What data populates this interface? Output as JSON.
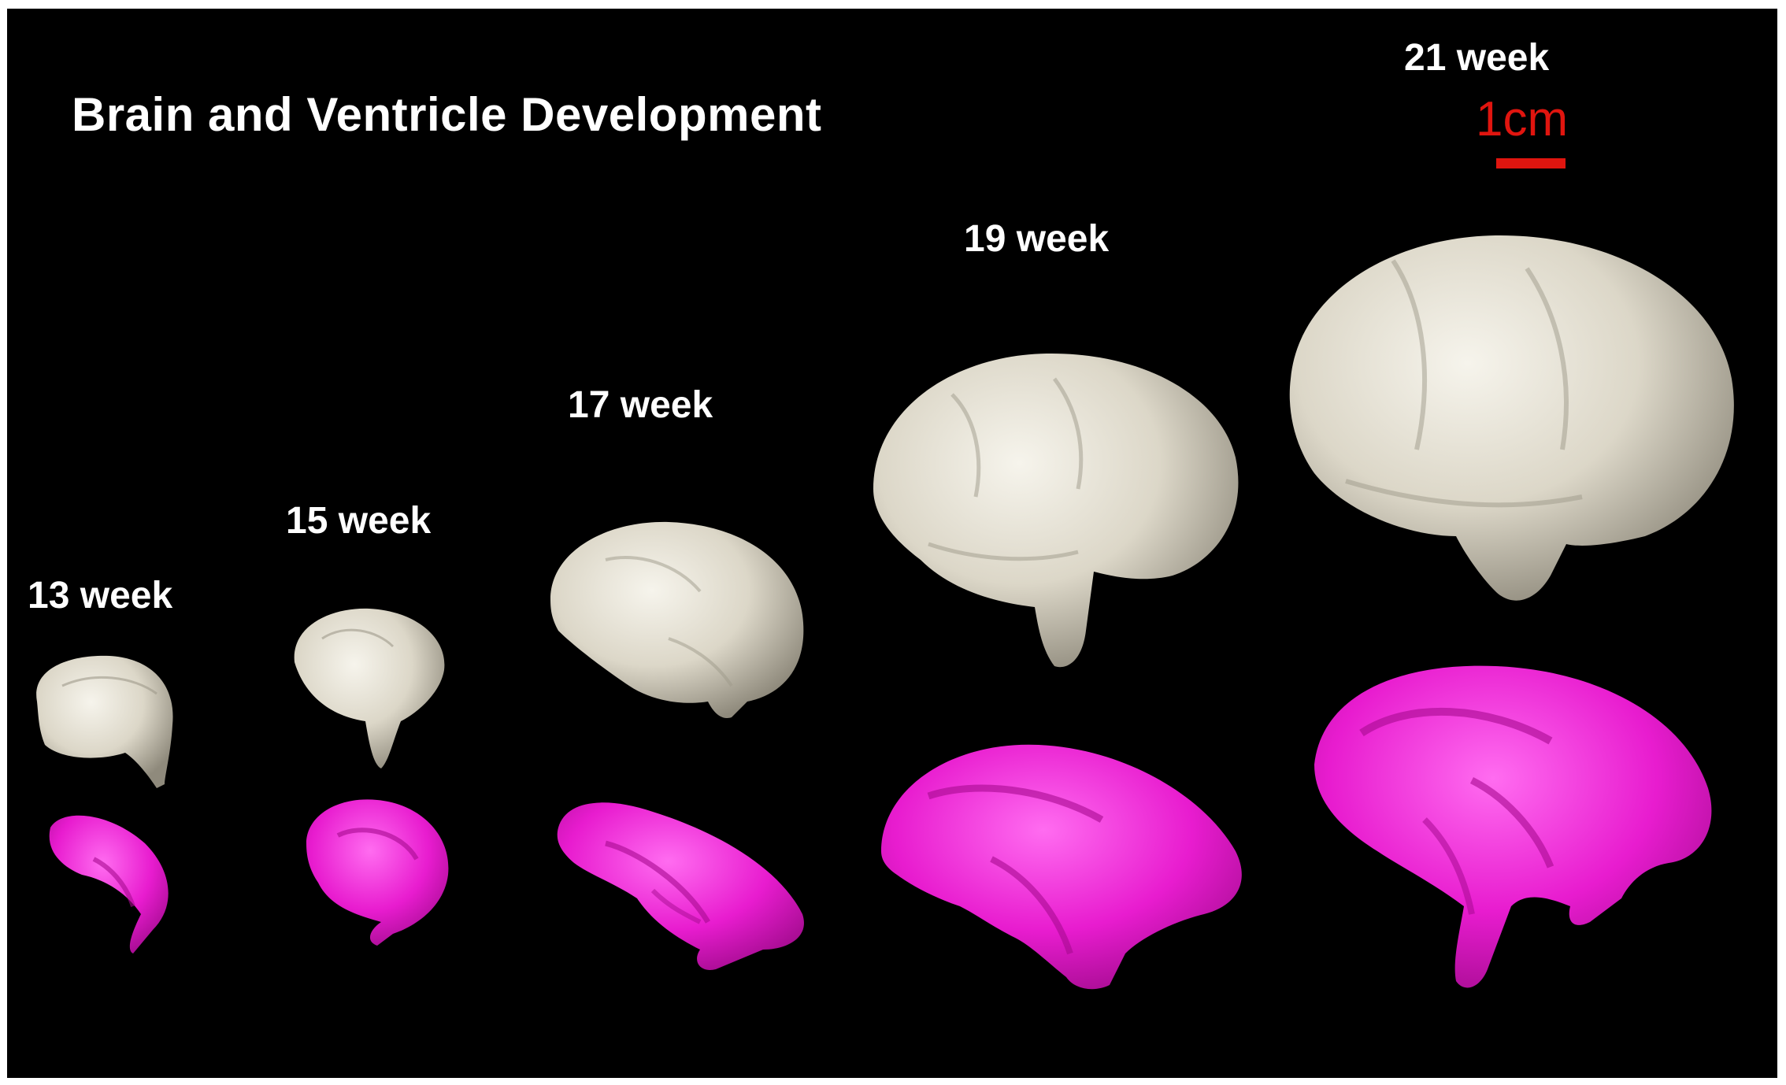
{
  "title": "Brain and Ventricle Development",
  "scale_bar": {
    "label": "1cm",
    "color": "#e0150f"
  },
  "stages": [
    {
      "label": "13 week"
    },
    {
      "label": "15 week"
    },
    {
      "label": "17 week"
    },
    {
      "label": "19 week"
    },
    {
      "label": "21 week"
    }
  ],
  "colors": {
    "background": "#000000",
    "brain": "#e6e2d6",
    "ventricle": "#ec1fd2"
  }
}
